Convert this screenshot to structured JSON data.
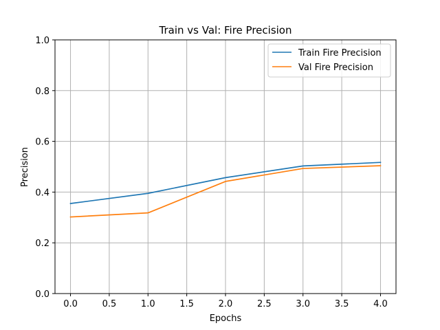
{
  "chart_data": {
    "type": "line",
    "title": "Train vs Val: Fire Precision",
    "xlabel": "Epochs",
    "ylabel": "Precision",
    "x": [
      0,
      1,
      2,
      3,
      4
    ],
    "xlim": [
      -0.2,
      4.2
    ],
    "ylim": [
      0.0,
      1.0
    ],
    "xticks": [
      "0.0",
      "0.5",
      "1.0",
      "1.5",
      "2.0",
      "2.5",
      "3.0",
      "3.5",
      "4.0"
    ],
    "yticks": [
      "0.0",
      "0.2",
      "0.4",
      "0.6",
      "0.8",
      "1.0"
    ],
    "grid": true,
    "legend_position": "top-right",
    "series": [
      {
        "name": "Train Fire Precision",
        "color": "#1f77b4",
        "values": [
          0.355,
          0.395,
          0.457,
          0.503,
          0.517
        ]
      },
      {
        "name": "Val Fire Precision",
        "color": "#ff7f0e",
        "values": [
          0.302,
          0.318,
          0.442,
          0.493,
          0.504
        ]
      }
    ]
  }
}
